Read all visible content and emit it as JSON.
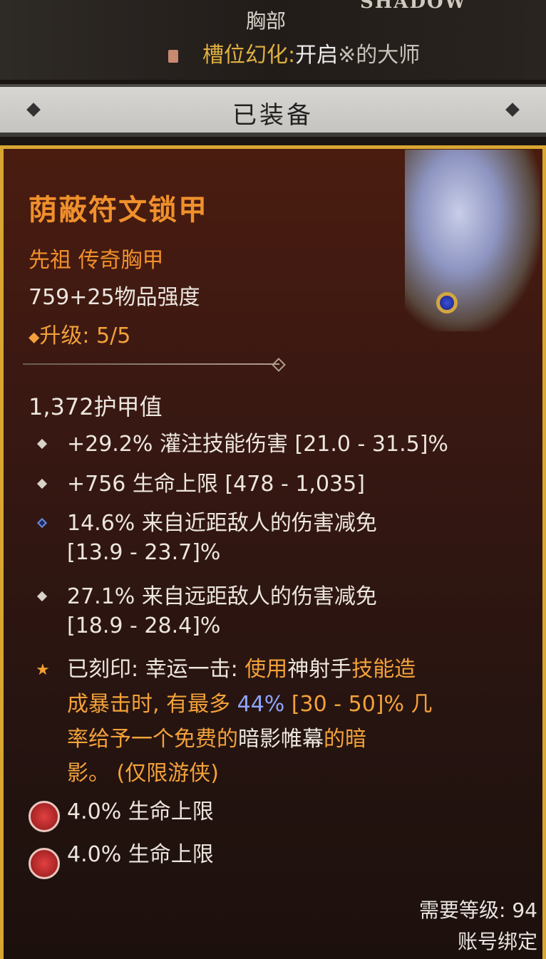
{
  "header": {
    "slot": "胸部",
    "shadow_label": "SHADOW",
    "transmog_label": "槽位幻化:",
    "transmog_value": "开启",
    "transmog_value_rest": "※的大师"
  },
  "equipped_bar": {
    "label": "已装备"
  },
  "item": {
    "name": "荫蔽符文锁甲",
    "type": "先祖 传奇胸甲",
    "power": "759+25物品强度",
    "upgrade_icon": "◆",
    "upgrade": "升级: 5/5",
    "armor": "1,372护甲值",
    "affixes": [
      {
        "text": "+29.2% 灌注技能伤害 [21.0 - 31.5]%",
        "bullet": "diamond"
      },
      {
        "text": "+756 生命上限 [478 - 1,035]",
        "bullet": "diamond"
      },
      {
        "text": "14.6% 来自近距敌人的伤害减免",
        "text2": "[13.9 - 23.7]%",
        "bullet": "greater-affix-blue"
      },
      {
        "text": "27.1% 来自远距敌人的伤害减免",
        "text2": "[18.9 - 28.4]%",
        "bullet": "diamond"
      }
    ],
    "aspect": {
      "l1": [
        {
          "t": "已刻印: 幸运一击: ",
          "c": "white"
        },
        {
          "t": "使用",
          "c": "orange"
        },
        {
          "t": "神射手",
          "c": "white"
        },
        {
          "t": "技能造",
          "c": "orange"
        }
      ],
      "l2": [
        {
          "t": "成暴击时, 有最多 ",
          "c": "orange"
        },
        {
          "t": "44%",
          "c": "blue"
        },
        {
          "t": " [30 - 50]% 几",
          "c": "orange"
        }
      ],
      "l3": [
        {
          "t": "率给予一个免费的",
          "c": "orange"
        },
        {
          "t": "暗影帷幕",
          "c": "white"
        },
        {
          "t": "的暗",
          "c": "orange"
        }
      ],
      "l4": [
        {
          "t": "影。 (仅限游侠)",
          "c": "orange"
        }
      ]
    },
    "sockets": [
      {
        "text": "4.0% 生命上限"
      },
      {
        "text": "4.0% 生命上限"
      }
    ],
    "required_level": "需要等级: 94",
    "account_bound": "账号绑定"
  },
  "colors": {
    "legendary": "#f0902c",
    "border": "#d9a632",
    "greater_affix": "#8ea4ff"
  }
}
